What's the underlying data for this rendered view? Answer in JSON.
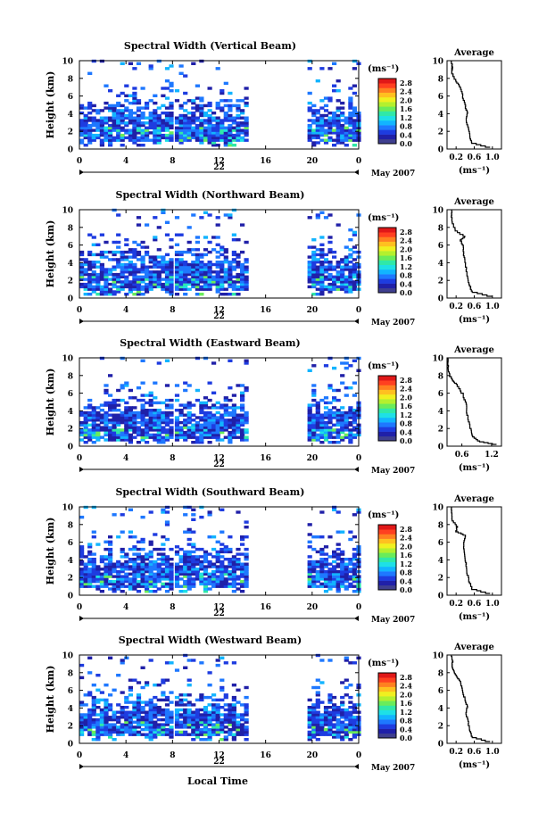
{
  "chart_data": {
    "type": "heatmap",
    "date_label": "May 2007",
    "x_axis_title": "Local Time",
    "colorbar": {
      "unit": "(ms⁻¹)",
      "ticks": [
        "0.0",
        "0.4",
        "0.8",
        "1.2",
        "1.6",
        "2.0",
        "2.4",
        "2.8"
      ],
      "range": [
        0,
        3.0
      ],
      "colors": [
        "#3f3f8f",
        "#2020a8",
        "#1e3ce0",
        "#1e78ff",
        "#12b4ff",
        "#1ee0e6",
        "#30e8a8",
        "#6aec5a",
        "#b4f02e",
        "#f0f020",
        "#ffc020",
        "#ff8020",
        "#ff4020",
        "#e01818"
      ]
    },
    "average_title": "Average",
    "average_xlabel": "(ms⁻¹)",
    "panels": [
      {
        "title": "Spectral Width (Vertical Beam)",
        "day_label": "22",
        "ylabel": "Height (km)",
        "x_ticks": [
          "0",
          "4",
          "8",
          "12",
          "16",
          "20",
          "0"
        ],
        "x_range": [
          0,
          24
        ],
        "y_ticks": [
          "0",
          "2",
          "4",
          "6",
          "8",
          "10"
        ],
        "y_range": [
          0,
          10
        ],
        "data_segments": [
          [
            0,
            7.8
          ],
          [
            8.2,
            14.2
          ],
          [
            19.6,
            24
          ]
        ],
        "avg_x_ticks": [
          "0.2",
          "0.6",
          "1.0"
        ],
        "avg_xlim": [
          0,
          1.2
        ],
        "avg_profile": {
          "height_km": [
            0.2,
            0.8,
            1.5,
            2.5,
            3.5,
            4.2,
            5.0,
            6.0,
            7.0,
            7.6,
            8.2,
            8.8,
            9.3,
            10.0
          ],
          "width": [
            0.95,
            0.55,
            0.5,
            0.47,
            0.42,
            0.45,
            0.4,
            0.35,
            0.3,
            0.22,
            0.15,
            0.1,
            0.12,
            0.1
          ]
        }
      },
      {
        "title": "Spectral Width (Northward Beam)",
        "day_label": "22",
        "ylabel": "Height (km)",
        "x_ticks": [
          "0",
          "4",
          "8",
          "12",
          "16",
          "20",
          "0"
        ],
        "x_range": [
          0,
          24
        ],
        "y_ticks": [
          "0",
          "2",
          "4",
          "6",
          "8",
          "10"
        ],
        "y_range": [
          0,
          10
        ],
        "data_segments": [
          [
            0,
            7.8
          ],
          [
            8.2,
            14.2
          ],
          [
            19.6,
            24
          ]
        ],
        "avg_x_ticks": [
          "0.2",
          "0.6",
          "1.0"
        ],
        "avg_xlim": [
          0,
          1.2
        ],
        "avg_profile": {
          "height_km": [
            0.2,
            0.8,
            1.5,
            2.5,
            3.5,
            4.2,
            5.0,
            6.0,
            6.6,
            7.0,
            7.8,
            8.6,
            9.3,
            10.0
          ],
          "width": [
            1.0,
            0.55,
            0.5,
            0.45,
            0.42,
            0.4,
            0.37,
            0.35,
            0.3,
            0.4,
            0.18,
            0.12,
            0.1,
            0.1
          ]
        }
      },
      {
        "title": "Spectral Width (Eastward Beam)",
        "day_label": "22",
        "ylabel": "Height (km)",
        "x_ticks": [
          "0",
          "4",
          "8",
          "12",
          "16",
          "20",
          "0"
        ],
        "x_range": [
          0,
          24
        ],
        "y_ticks": [
          "0",
          "2",
          "4",
          "6",
          "8",
          "10"
        ],
        "y_range": [
          0,
          10
        ],
        "data_segments": [
          [
            0,
            7.8
          ],
          [
            8.2,
            14.2
          ],
          [
            19.6,
            24
          ]
        ],
        "avg_x_ticks": [
          "0.6",
          "1.2"
        ],
        "avg_xlim": [
          0.3,
          1.4
        ],
        "avg_profile": {
          "height_km": [
            0.2,
            0.6,
            1.2,
            2.0,
            3.0,
            4.0,
            5.0,
            6.0,
            7.0,
            7.5,
            8.0,
            8.8,
            9.5,
            10.0
          ],
          "width": [
            1.3,
            0.95,
            0.82,
            0.78,
            0.74,
            0.7,
            0.68,
            0.62,
            0.5,
            0.42,
            0.36,
            0.33,
            0.32,
            0.32
          ]
        }
      },
      {
        "title": "Spectral Width (Southward Beam)",
        "day_label": "22",
        "ylabel": "Height (km)",
        "x_ticks": [
          "0",
          "4",
          "8",
          "12",
          "16",
          "20",
          "0"
        ],
        "x_range": [
          0,
          24
        ],
        "y_ticks": [
          "0",
          "2",
          "4",
          "6",
          "8",
          "10"
        ],
        "y_range": [
          0,
          10
        ],
        "data_segments": [
          [
            0,
            7.8
          ],
          [
            8.2,
            14.2
          ],
          [
            19.6,
            24
          ]
        ],
        "avg_x_ticks": [
          "0.2",
          "0.6",
          "1.0"
        ],
        "avg_xlim": [
          0,
          1.2
        ],
        "avg_profile": {
          "height_km": [
            0.2,
            0.8,
            1.5,
            2.5,
            3.5,
            4.2,
            5.0,
            6.0,
            6.8,
            7.3,
            7.8,
            8.6,
            9.3,
            10.0
          ],
          "width": [
            0.95,
            0.55,
            0.5,
            0.45,
            0.42,
            0.4,
            0.38,
            0.36,
            0.4,
            0.2,
            0.22,
            0.12,
            0.1,
            0.1
          ]
        }
      },
      {
        "title": "Spectral Width (Westward Beam)",
        "day_label": "22",
        "ylabel": "Height (km)",
        "x_ticks": [
          "0",
          "4",
          "8",
          "12",
          "16",
          "20",
          "0"
        ],
        "x_range": [
          0,
          24
        ],
        "y_ticks": [
          "0",
          "2",
          "4",
          "6",
          "8",
          "10"
        ],
        "y_range": [
          0,
          10
        ],
        "data_segments": [
          [
            0,
            7.8
          ],
          [
            8.2,
            14.2
          ],
          [
            19.6,
            24
          ]
        ],
        "avg_x_ticks": [
          "0.2",
          "0.6",
          "1.0"
        ],
        "avg_xlim": [
          0,
          1.2
        ],
        "avg_profile": {
          "height_km": [
            0.2,
            0.8,
            1.5,
            2.5,
            3.5,
            4.2,
            5.0,
            6.0,
            7.0,
            7.6,
            8.2,
            8.8,
            9.3,
            10.0
          ],
          "width": [
            0.95,
            0.55,
            0.5,
            0.47,
            0.42,
            0.45,
            0.4,
            0.35,
            0.3,
            0.22,
            0.15,
            0.1,
            0.12,
            0.1
          ]
        }
      }
    ]
  }
}
